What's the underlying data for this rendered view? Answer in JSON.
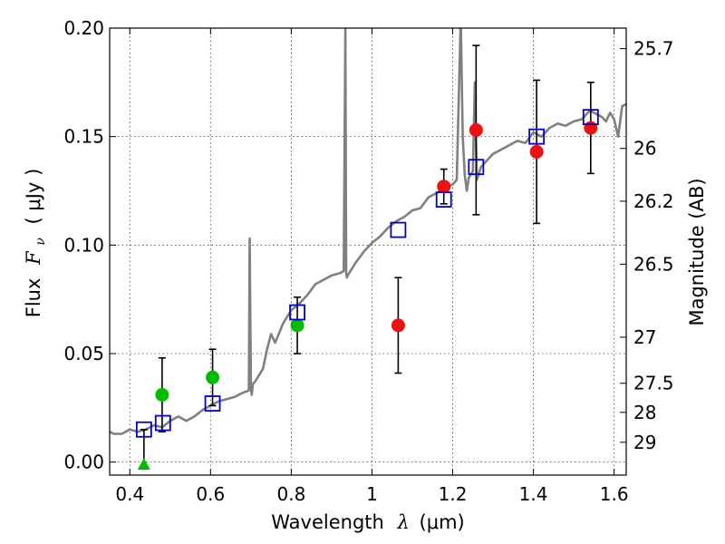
{
  "chart_data": {
    "type": "scatter",
    "xlabel_prefix": "Wavelength",
    "xlabel_symbol": "λ",
    "xlabel_unit": "(μm)",
    "ylabel_prefix": "Flux",
    "ylabel_symbol": "F",
    "ylabel_subscript": "ν",
    "ylabel_unit": "( μJy )",
    "y2label": "Magnitude (AB)",
    "xlim": [
      0.35,
      1.63
    ],
    "ylim": [
      -0.006,
      0.2
    ],
    "xticks": [
      0.4,
      0.6,
      0.8,
      1.0,
      1.2,
      1.4,
      1.6
    ],
    "xtick_labels": [
      "0.4",
      "0.6",
      "0.8",
      "1",
      "1.2",
      "1.4",
      "1.6"
    ],
    "yticks": [
      0.0,
      0.05,
      0.1,
      0.15,
      0.2
    ],
    "ytick_labels": [
      "0.00",
      "0.05",
      "0.10",
      "0.15",
      "0.20"
    ],
    "grid": true,
    "mag_ticks": [
      {
        "label": "25.7",
        "value": 25.7
      },
      {
        "label": "26",
        "value": 26.0
      },
      {
        "label": "26.2",
        "value": 26.2
      },
      {
        "label": "26.5",
        "value": 26.5
      },
      {
        "label": "27",
        "value": 27.0
      },
      {
        "label": "27.5",
        "value": 27.5
      },
      {
        "label": "28",
        "value": 28.0
      },
      {
        "label": "29",
        "value": 29.0
      }
    ],
    "colors": {
      "model": "#808080",
      "green": "#00bb00",
      "red": "#ee1111",
      "box": "#0000cc",
      "errbar": "#000000"
    },
    "series": [
      {
        "name": "model spectrum",
        "kind": "line",
        "x": [
          0.35,
          0.36,
          0.38,
          0.4,
          0.42,
          0.44,
          0.46,
          0.48,
          0.5,
          0.52,
          0.54,
          0.56,
          0.58,
          0.6,
          0.62,
          0.64,
          0.66,
          0.68,
          0.695,
          0.697,
          0.7,
          0.702,
          0.705,
          0.71,
          0.72,
          0.73,
          0.74,
          0.75,
          0.76,
          0.78,
          0.8,
          0.82,
          0.84,
          0.86,
          0.88,
          0.9,
          0.92,
          0.93,
          0.934,
          0.936,
          0.938,
          0.94,
          0.96,
          0.98,
          1.0,
          1.02,
          1.04,
          1.06,
          1.08,
          1.1,
          1.12,
          1.14,
          1.16,
          1.18,
          1.2,
          1.21,
          1.22,
          1.225,
          1.23,
          1.235,
          1.24,
          1.25,
          1.255,
          1.26,
          1.265,
          1.27,
          1.28,
          1.3,
          1.32,
          1.34,
          1.36,
          1.38,
          1.4,
          1.42,
          1.44,
          1.46,
          1.48,
          1.5,
          1.52,
          1.54,
          1.56,
          1.57,
          1.58,
          1.59,
          1.6,
          1.61,
          1.62,
          1.63
        ],
        "y": [
          0.014,
          0.013,
          0.013,
          0.015,
          0.014,
          0.015,
          0.017,
          0.016,
          0.019,
          0.021,
          0.019,
          0.021,
          0.024,
          0.026,
          0.028,
          0.029,
          0.03,
          0.032,
          0.033,
          0.103,
          0.034,
          0.031,
          0.036,
          0.037,
          0.04,
          0.043,
          0.052,
          0.059,
          0.055,
          0.064,
          0.07,
          0.073,
          0.077,
          0.082,
          0.084,
          0.086,
          0.087,
          0.088,
          0.2,
          0.087,
          0.085,
          0.086,
          0.092,
          0.097,
          0.101,
          0.104,
          0.108,
          0.111,
          0.113,
          0.116,
          0.117,
          0.122,
          0.124,
          0.126,
          0.128,
          0.13,
          0.205,
          0.15,
          0.132,
          0.125,
          0.131,
          0.134,
          0.175,
          0.13,
          0.133,
          0.136,
          0.138,
          0.142,
          0.144,
          0.146,
          0.148,
          0.147,
          0.152,
          0.15,
          0.154,
          0.156,
          0.155,
          0.157,
          0.158,
          0.162,
          0.16,
          0.159,
          0.157,
          0.161,
          0.158,
          0.15,
          0.164,
          0.165
        ]
      },
      {
        "name": "ground-based photometry (green)",
        "kind": "points",
        "points": [
          {
            "x": 0.48,
            "y": 0.031,
            "err": 0.017
          },
          {
            "x": 0.605,
            "y": 0.039,
            "err": 0.013
          },
          {
            "x": 0.815,
            "y": 0.063,
            "err": 0.013
          }
        ]
      },
      {
        "name": "upper limit (green triangle)",
        "kind": "points",
        "points": [
          {
            "x": 0.435,
            "y": -0.001,
            "err_low": 0.001,
            "err_high": 0.016
          }
        ]
      },
      {
        "name": "near-IR photometry (red)",
        "kind": "points",
        "points": [
          {
            "x": 1.065,
            "y": 0.063,
            "err": 0.022
          },
          {
            "x": 1.178,
            "y": 0.127,
            "err": 0.008
          },
          {
            "x": 1.258,
            "y": 0.153,
            "err": 0.039
          },
          {
            "x": 1.408,
            "y": 0.143,
            "err": 0.033
          },
          {
            "x": 1.542,
            "y": 0.154,
            "err": 0.021
          }
        ]
      },
      {
        "name": "model synthetic photometry (boxes)",
        "kind": "points",
        "points": [
          {
            "x": 0.435,
            "y": 0.015
          },
          {
            "x": 0.482,
            "y": 0.018
          },
          {
            "x": 0.605,
            "y": 0.027
          },
          {
            "x": 0.815,
            "y": 0.069
          },
          {
            "x": 1.065,
            "y": 0.107
          },
          {
            "x": 1.178,
            "y": 0.121
          },
          {
            "x": 1.258,
            "y": 0.136
          },
          {
            "x": 1.408,
            "y": 0.15
          },
          {
            "x": 1.542,
            "y": 0.159
          }
        ]
      }
    ]
  }
}
